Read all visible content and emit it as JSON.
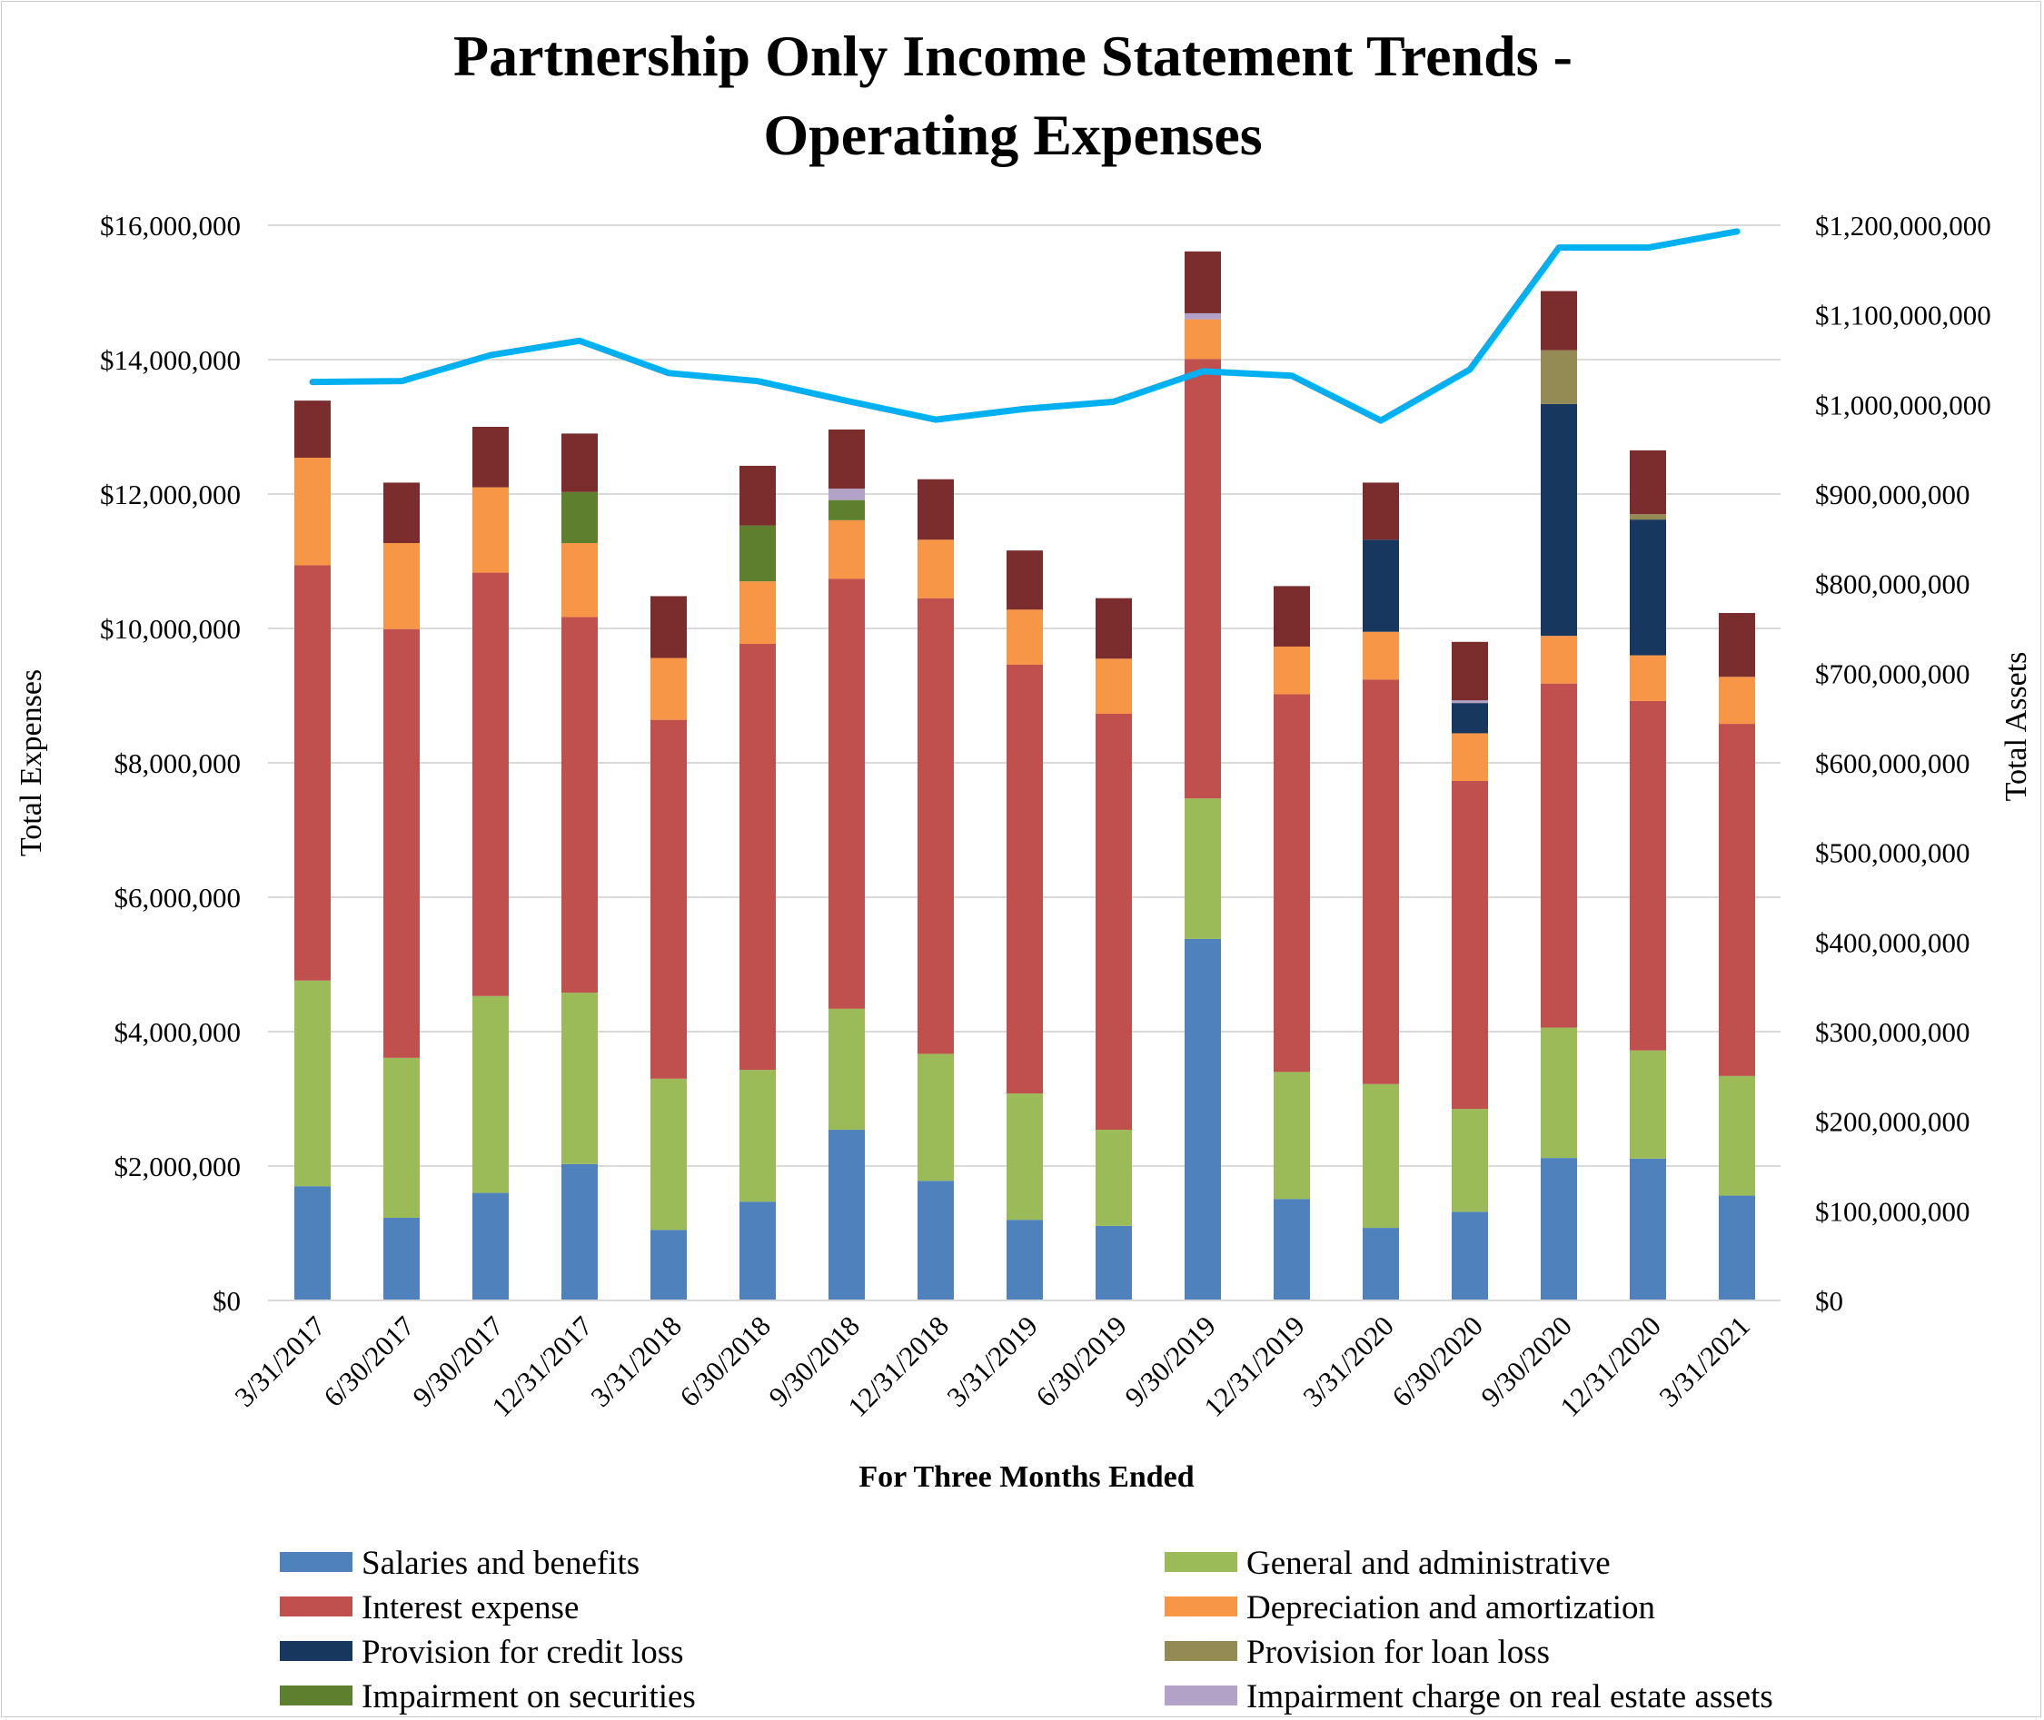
{
  "chart_data": {
    "type": "bar",
    "stacked": true,
    "title_line1": "Partnership Only Income Statement Trends -",
    "title_line2": "Operating Expenses",
    "xlabel": "For Three Months Ended",
    "ylabel": "Total Expenses",
    "y2label": "Total Assets",
    "ylim": [
      0,
      16000000
    ],
    "y2lim": [
      0,
      1200000000
    ],
    "y_ticks": [
      "$0",
      "$2,000,000",
      "$4,000,000",
      "$6,000,000",
      "$8,000,000",
      "$10,000,000",
      "$12,000,000",
      "$14,000,000",
      "$16,000,000"
    ],
    "y2_ticks": [
      "$0",
      "$100,000,000",
      "$200,000,000",
      "$300,000,000",
      "$400,000,000",
      "$500,000,000",
      "$600,000,000",
      "$700,000,000",
      "$800,000,000",
      "$900,000,000",
      "$1,000,000,000",
      "$1,100,000,000",
      "$1,200,000,000"
    ],
    "grid": true,
    "legend_position": "bottom",
    "categories": [
      "3/31/2017",
      "6/30/2017",
      "9/30/2017",
      "12/31/2017",
      "3/31/2018",
      "6/30/2018",
      "9/30/2018",
      "12/31/2018",
      "3/31/2019",
      "6/30/2019",
      "9/30/2019",
      "12/31/2019",
      "3/31/2020",
      "6/30/2020",
      "9/30/2020",
      "12/31/2020",
      "3/31/2021"
    ],
    "series": [
      {
        "name": "Salaries and benefits",
        "color": "#4f81bd",
        "values": [
          1700000,
          1230000,
          1600000,
          2030000,
          1050000,
          1470000,
          2540000,
          1780000,
          1200000,
          1110000,
          5380000,
          1510000,
          1080000,
          1320000,
          2120000,
          2110000,
          1560000
        ]
      },
      {
        "name": "General and administrative",
        "color": "#9bbb59",
        "values": [
          3060000,
          2380000,
          2930000,
          2550000,
          2250000,
          1960000,
          1800000,
          1890000,
          1880000,
          1430000,
          2090000,
          1890000,
          2140000,
          1530000,
          1940000,
          1610000,
          1780000
        ]
      },
      {
        "name": "Interest expense",
        "color": "#c0504d",
        "values": [
          6180000,
          6380000,
          6300000,
          5590000,
          5340000,
          6340000,
          6400000,
          6780000,
          6380000,
          6190000,
          6540000,
          5620000,
          6020000,
          4880000,
          5120000,
          5200000,
          5240000
        ]
      },
      {
        "name": "Depreciation and amortization",
        "color": "#f79646",
        "values": [
          1600000,
          1280000,
          1270000,
          1100000,
          920000,
          930000,
          870000,
          870000,
          820000,
          820000,
          590000,
          710000,
          710000,
          710000,
          710000,
          680000,
          700000
        ]
      },
      {
        "name": "Provision for credit loss",
        "color": "#17375e",
        "values": [
          0,
          0,
          0,
          0,
          0,
          0,
          0,
          0,
          0,
          0,
          0,
          0,
          1370000,
          450000,
          3450000,
          2020000,
          0
        ]
      },
      {
        "name": "Provision for loan loss",
        "color": "#948a54",
        "values": [
          0,
          0,
          0,
          0,
          0,
          0,
          0,
          0,
          0,
          0,
          0,
          0,
          0,
          0,
          800000,
          80000,
          0
        ]
      },
      {
        "name": "Impairment on securities",
        "color": "#5e7f2e",
        "values": [
          0,
          0,
          0,
          760000,
          0,
          830000,
          300000,
          0,
          0,
          0,
          0,
          0,
          0,
          0,
          0,
          0,
          0
        ]
      },
      {
        "name": "Impairment charge on real estate assets",
        "color": "#b3a2c7",
        "values": [
          0,
          0,
          0,
          0,
          0,
          0,
          170000,
          0,
          0,
          0,
          90000,
          0,
          0,
          40000,
          0,
          0,
          0
        ]
      },
      {
        "name": "",
        "color": "#7b2c2c",
        "values": [
          850000,
          900000,
          900000,
          870000,
          920000,
          890000,
          880000,
          900000,
          880000,
          900000,
          920000,
          900000,
          850000,
          870000,
          880000,
          950000,
          950000
        ]
      }
    ],
    "line_series": {
      "name": "",
      "axis": "right",
      "color": "#00b0f0",
      "values": [
        1025000000,
        1026000000,
        1055000000,
        1071000000,
        1035000000,
        1026000000,
        1004000000,
        983000000,
        995000000,
        1003000000,
        1037000000,
        1032000000,
        982000000,
        1039000000,
        1175000000,
        1175000000,
        1193000000
      ]
    },
    "legend_rows": [
      [
        "Salaries and benefits",
        "General and administrative"
      ],
      [
        "Interest expense",
        "Depreciation and amortization"
      ],
      [
        "Provision for credit loss",
        "Provision for loan loss"
      ],
      [
        "Impairment on securities",
        "Impairment charge on real estate assets"
      ]
    ]
  }
}
